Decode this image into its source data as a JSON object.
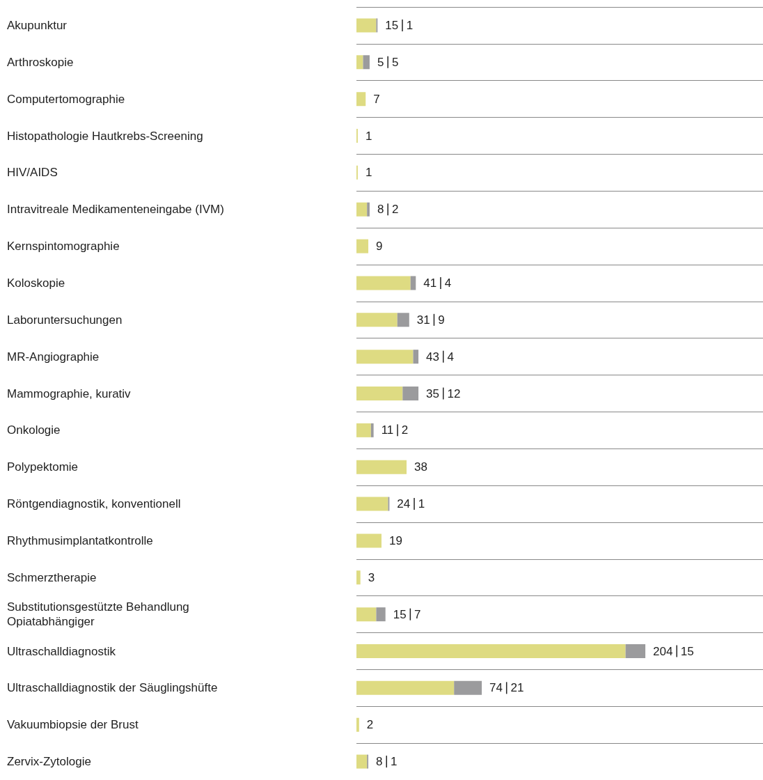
{
  "chart_data": {
    "type": "bar",
    "orientation": "horizontal",
    "stacked": true,
    "grid": "y",
    "categories": [
      "Akupunktur",
      "Arthroskopie",
      "Computertomographie",
      "Histopathologie Hautkrebs-Screening",
      "HIV/AIDS",
      "Intravitreale Medikamenteneingabe (IVM)",
      "Kernspintomographie",
      "Koloskopie",
      "Laboruntersuchungen",
      "MR-Angiographie",
      "Mammographie, kurativ",
      "Onkologie",
      "Polypektomie",
      "Röntgendiagnostik, konventionell",
      "Rhythmusimplantatkontrolle",
      "Schmerztherapie",
      "Substitutionsgestützte Behandlung Opiatabhängiger",
      "Ultraschalldiagnostik",
      "Ultraschalldiagnostik der Säuglingshüfte",
      "Vakuumbiopsie der Brust",
      "Zervix-Zytologie"
    ],
    "series": [
      {
        "color": "#dedb82",
        "values": [
          15,
          5,
          7,
          1,
          1,
          8,
          9,
          41,
          31,
          43,
          35,
          11,
          38,
          24,
          19,
          3,
          15,
          204,
          74,
          2,
          8
        ]
      },
      {
        "color": "#9b9b9d",
        "values": [
          1,
          5,
          null,
          null,
          null,
          2,
          null,
          4,
          9,
          4,
          12,
          2,
          null,
          1,
          null,
          null,
          7,
          15,
          21,
          null,
          1
        ]
      }
    ],
    "data_labels": true
  }
}
